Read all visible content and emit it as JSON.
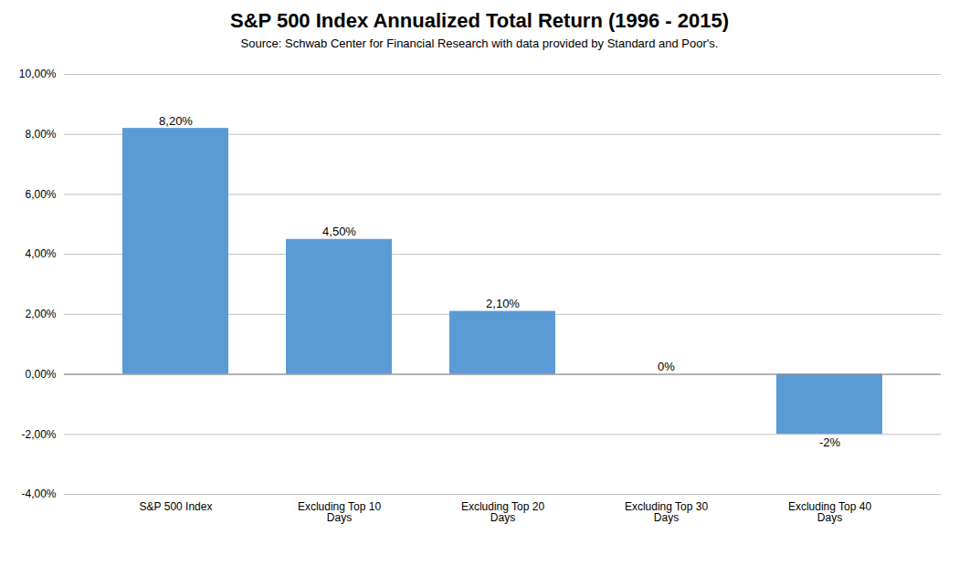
{
  "chart_data": {
    "type": "bar",
    "title": "S&P 500 Index Annualized Total Return (1996 - 2015)",
    "subtitle": "Source: Schwab Center for Financial Research with data provided by Standard and Poor's.",
    "categories": [
      "S&P 500 Index",
      "Excluding Top 10\nDays",
      "Excluding Top 20\nDays",
      "Excluding Top 30\nDays",
      "Excluding Top 40\nDays"
    ],
    "values": [
      0.082,
      0.045,
      0.021,
      0.0,
      -0.02
    ],
    "value_labels": [
      "8,20%",
      "4,50%",
      "2,10%",
      "0%",
      "-2%"
    ],
    "data_labels": true,
    "color": "#5b9bd5",
    "ylim": [
      -0.04,
      0.1
    ],
    "yticks": [
      {
        "value": -0.04,
        "label": "-4,00%"
      },
      {
        "value": -0.02,
        "label": "-2,00%"
      },
      {
        "value": 0.0,
        "label": "0,00%"
      },
      {
        "value": 0.02,
        "label": "2,00%"
      },
      {
        "value": 0.04,
        "label": "4,00%"
      },
      {
        "value": 0.06,
        "label": "6,00%"
      },
      {
        "value": 0.08,
        "label": "8,00%"
      },
      {
        "value": 0.1,
        "label": "10,00%"
      }
    ],
    "grid": true
  }
}
